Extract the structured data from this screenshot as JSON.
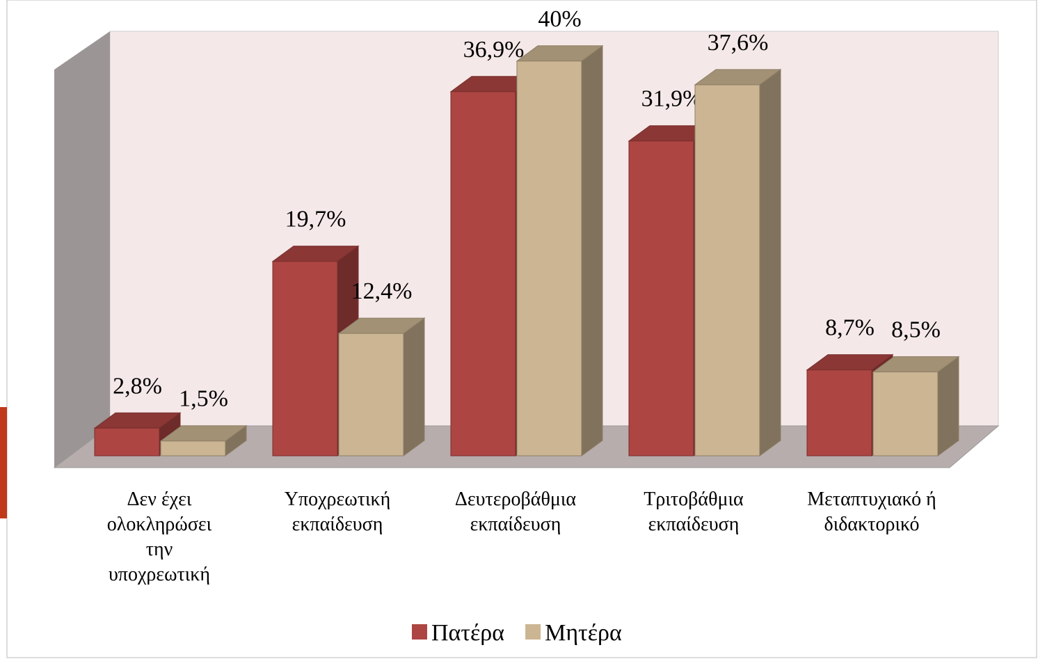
{
  "chart_data": {
    "type": "bar3d",
    "categories": [
      "Δεν έχει ολοκληρώσει την υποχρεωτική",
      "Υποχρεωτική εκπαίδευση",
      "Δευτεροβάθμια εκπαίδευση",
      "Τριτοβάθμια εκπαίδευση",
      "Μεταπτυχιακό ή διδακτορικό"
    ],
    "series": [
      {
        "name": "Πατέρα",
        "color": "#ad4542",
        "values": [
          2.8,
          19.7,
          36.9,
          31.9,
          8.7
        ],
        "value_labels": [
          "2,8%",
          "19,7%",
          "36,9%",
          "31,9%",
          "8,7%"
        ]
      },
      {
        "name": "Μητέρα",
        "color": "#cbb592",
        "values": [
          1.5,
          12.4,
          40,
          37.6,
          8.5
        ],
        "value_labels": [
          "1,5%",
          "12,4%",
          "40%",
          "37,6%",
          "8,5%"
        ]
      }
    ],
    "legend": "bottom"
  }
}
